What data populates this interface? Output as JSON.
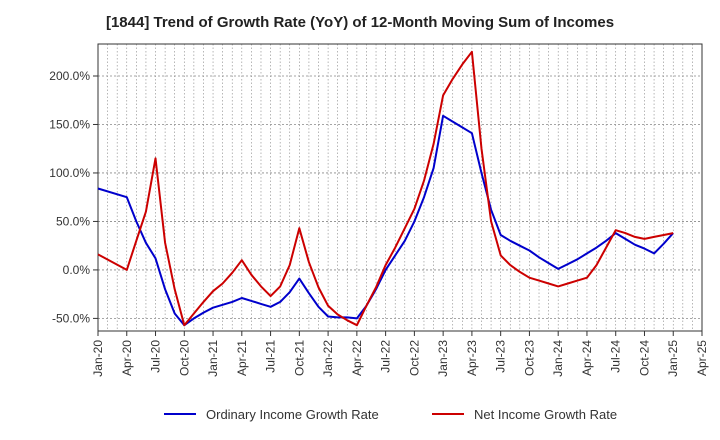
{
  "chart_data": {
    "type": "line",
    "title": "[1844]  Trend of Growth Rate (YoY) of 12-Month Moving Sum of Incomes",
    "x": [
      "2020-01",
      "2020-02",
      "2020-03",
      "2020-04",
      "2020-05",
      "2020-06",
      "2020-07",
      "2020-08",
      "2020-09",
      "2020-10",
      "2020-11",
      "2020-12",
      "2021-01",
      "2021-02",
      "2021-03",
      "2021-04",
      "2021-05",
      "2021-06",
      "2021-07",
      "2021-08",
      "2021-09",
      "2021-10",
      "2021-11",
      "2021-12",
      "2022-01",
      "2022-02",
      "2022-03",
      "2022-04",
      "2022-05",
      "2022-06",
      "2022-07",
      "2022-08",
      "2022-09",
      "2022-10",
      "2022-11",
      "2022-12",
      "2023-01",
      "2023-02",
      "2023-03",
      "2023-04",
      "2023-05",
      "2023-06",
      "2023-07",
      "2023-08",
      "2023-09",
      "2023-10",
      "2023-11",
      "2023-12",
      "2024-01",
      "2024-02",
      "2024-03",
      "2024-04",
      "2024-05",
      "2024-06",
      "2024-07",
      "2024-08",
      "2024-09",
      "2024-10",
      "2024-11",
      "2024-12",
      "2025-01"
    ],
    "x_tick_labels": [
      "Jan-20",
      "Apr-20",
      "Jul-20",
      "Oct-20",
      "Jan-21",
      "Apr-21",
      "Jul-21",
      "Oct-21",
      "Jan-22",
      "Apr-22",
      "Jul-22",
      "Oct-22",
      "Jan-23",
      "Apr-23",
      "Jul-23",
      "Oct-23",
      "Jan-24",
      "Apr-24",
      "Jul-24",
      "Oct-24",
      "Jan-25",
      "Apr-25"
    ],
    "xlim": [
      "2020-01",
      "2025-04"
    ],
    "y_tick_labels": [
      "-50.0%",
      "0.0%",
      "50.0%",
      "100.0%",
      "150.0%",
      "200.0%"
    ],
    "y_ticks": [
      -50,
      0,
      50,
      100,
      150,
      200
    ],
    "ylim": [
      -63,
      233
    ],
    "xlabel": "",
    "ylabel": "",
    "grid": true,
    "legend_position": "bottom",
    "series": [
      {
        "name": "Ordinary Income Growth Rate",
        "color": "#0000cc",
        "values": [
          84,
          null,
          null,
          75,
          50,
          28,
          12,
          -20,
          -45,
          -57,
          -50,
          -44,
          -39,
          -36,
          -33,
          -29,
          -32,
          -35,
          -38,
          -33,
          -23,
          -9,
          -24,
          -38,
          -48,
          -49,
          -49,
          -50,
          -37,
          -20,
          0,
          15,
          30,
          50,
          75,
          105,
          159,
          153,
          147,
          141,
          100,
          62,
          36,
          30,
          25,
          20,
          13,
          7,
          1,
          6,
          11,
          17,
          23,
          30,
          38,
          32,
          26,
          22,
          17,
          27,
          38
        ]
      },
      {
        "name": "Net Income Growth Rate",
        "color": "#cc0000",
        "values": [
          16,
          null,
          null,
          0,
          30,
          60,
          115,
          28,
          -20,
          -57,
          -45,
          -33,
          -22,
          -14,
          -3,
          10,
          -5,
          -17,
          -27,
          -17,
          5,
          43,
          8,
          -18,
          -37,
          -46,
          -52,
          -57,
          -37,
          -18,
          5,
          23,
          43,
          63,
          92,
          130,
          180,
          197,
          212,
          225,
          125,
          50,
          15,
          5,
          -2,
          -8,
          -11,
          -14,
          -17,
          -14,
          -11,
          -8,
          5,
          23,
          41,
          38,
          34,
          32,
          34,
          36,
          38
        ]
      }
    ]
  }
}
